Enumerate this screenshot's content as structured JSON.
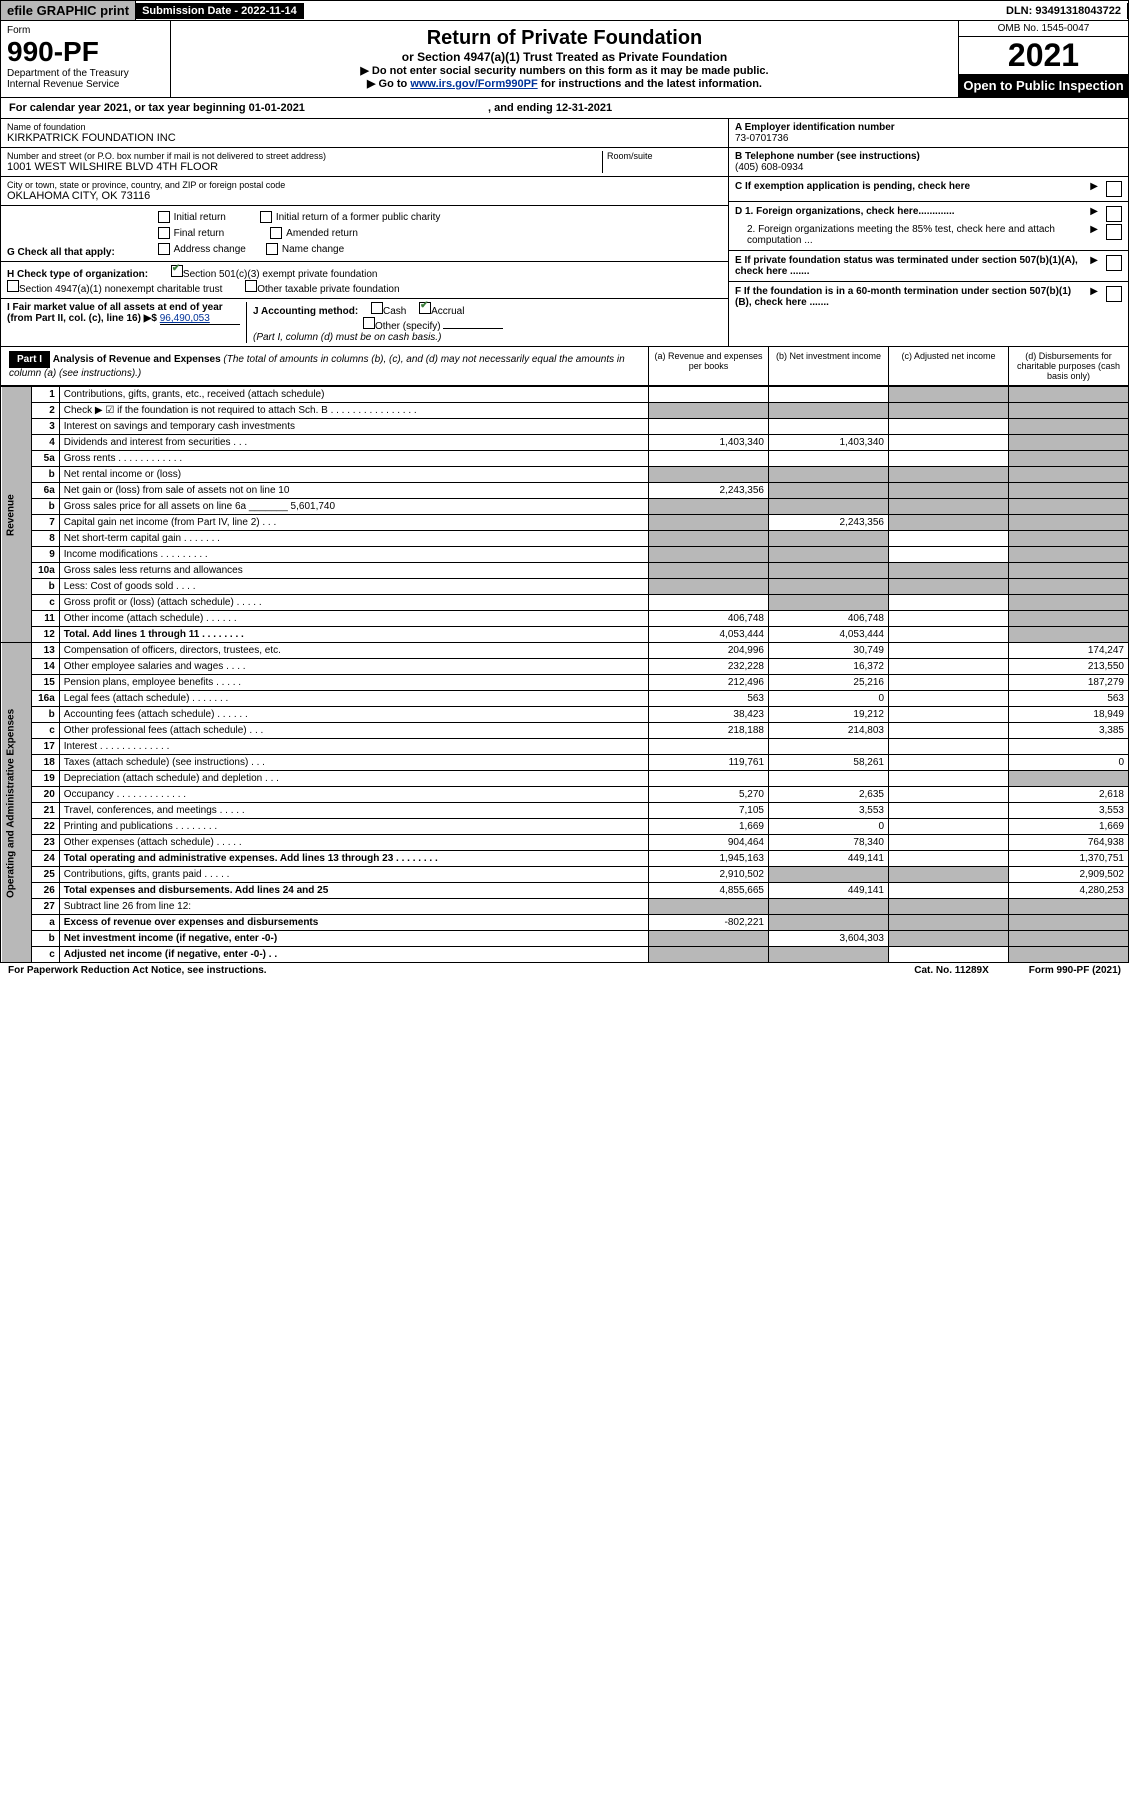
{
  "top": {
    "efile": "efile GRAPHIC print",
    "subdate_label": "Submission Date - 2022-11-14",
    "dln": "DLN: 93491318043722"
  },
  "header": {
    "form_word": "Form",
    "form_no": "990-PF",
    "dept": "Department of the Treasury",
    "irs": "Internal Revenue Service",
    "title": "Return of Private Foundation",
    "sub": "or Section 4947(a)(1) Trust Treated as Private Foundation",
    "note1": "▶ Do not enter social security numbers on this form as it may be made public.",
    "note2_pre": "▶ Go to ",
    "note2_link": "www.irs.gov/Form990PF",
    "note2_post": " for instructions and the latest information.",
    "omb": "OMB No. 1545-0047",
    "year": "2021",
    "open": "Open to Public Inspection"
  },
  "calyear": {
    "pre": "For calendar year 2021, or tax year beginning ",
    "begin": "01-01-2021",
    "mid": " , and ending ",
    "end": "12-31-2021"
  },
  "org": {
    "name_label": "Name of foundation",
    "name": "KIRKPATRICK FOUNDATION INC",
    "addr_label": "Number and street (or P.O. box number if mail is not delivered to street address)",
    "addr": "1001 WEST WILSHIRE BLVD 4TH FLOOR",
    "room_label": "Room/suite",
    "city_label": "City or town, state or province, country, and ZIP or foreign postal code",
    "city": "OKLAHOMA CITY, OK  73116"
  },
  "right": {
    "a_label": "A Employer identification number",
    "a_val": "73-0701736",
    "b_label": "B Telephone number (see instructions)",
    "b_val": "(405) 608-0934",
    "c_label": "C If exemption application is pending, check here",
    "d1": "D 1. Foreign organizations, check here.............",
    "d2": "2. Foreign organizations meeting the 85% test, check here and attach computation ...",
    "e": "E  If private foundation status was terminated under section 507(b)(1)(A), check here .......",
    "f": "F  If the foundation is in a 60-month termination under section 507(b)(1)(B), check here ......."
  },
  "g": {
    "label": "G Check all that apply:",
    "initial": "Initial return",
    "initial_former": "Initial return of a former public charity",
    "final": "Final return",
    "amended": "Amended return",
    "addr_change": "Address change",
    "name_change": "Name change"
  },
  "h": {
    "label": "H Check type of organization:",
    "501c3": "Section 501(c)(3) exempt private foundation",
    "4947": "Section 4947(a)(1) nonexempt charitable trust",
    "other_tax": "Other taxable private foundation"
  },
  "i": {
    "label": "I Fair market value of all assets at end of year (from Part II, col. (c), line 16) ▶$ ",
    "val": "96,490,053"
  },
  "j": {
    "label": "J Accounting method:",
    "cash": "Cash",
    "accrual": "Accrual",
    "other": "Other (specify)",
    "note": "(Part I, column (d) must be on cash basis.)"
  },
  "part1": {
    "label": "Part I",
    "title": "Analysis of Revenue and Expenses",
    "note": " (The total of amounts in columns (b), (c), and (d) may not necessarily equal the amounts in column (a) (see instructions).)",
    "col_a": "(a)   Revenue and expenses per books",
    "col_b": "(b)   Net investment income",
    "col_c": "(c)   Adjusted net income",
    "col_d": "(d)   Disbursements for charitable purposes (cash basis only)"
  },
  "sections": {
    "revenue": "Revenue",
    "expenses": "Operating and Administrative Expenses"
  },
  "rows": [
    {
      "n": "1",
      "d": "Contributions, gifts, grants, etc., received (attach schedule)",
      "a": "",
      "b": "",
      "c": "",
      "dd": "",
      "shade_c": true,
      "shade_d": true
    },
    {
      "n": "2",
      "d": "Check ▶ ☑ if the foundation is not required to attach Sch. B   . . . . . . . . . . . . . . . .",
      "a": "",
      "b": "",
      "c": "",
      "dd": "",
      "shade_a": true,
      "shade_b": true,
      "shade_c": true,
      "shade_d": true
    },
    {
      "n": "3",
      "d": "Interest on savings and temporary cash investments",
      "a": "",
      "b": "",
      "c": "",
      "dd": "",
      "shade_d": true
    },
    {
      "n": "4",
      "d": "Dividends and interest from securities   . . .",
      "a": "1,403,340",
      "b": "1,403,340",
      "c": "",
      "dd": "",
      "shade_d": true
    },
    {
      "n": "5a",
      "d": "Gross rents   . . . . . . . . . . . .",
      "a": "",
      "b": "",
      "c": "",
      "dd": "",
      "shade_d": true
    },
    {
      "n": "b",
      "d": "Net rental income or (loss)  ",
      "a": "",
      "b": "",
      "c": "",
      "dd": "",
      "shade_a": true,
      "shade_b": true,
      "shade_c": true,
      "shade_d": true
    },
    {
      "n": "6a",
      "d": "Net gain or (loss) from sale of assets not on line 10",
      "a": "2,243,356",
      "b": "",
      "c": "",
      "dd": "",
      "shade_b": true,
      "shade_c": true,
      "shade_d": true
    },
    {
      "n": "b",
      "d": "Gross sales price for all assets on line 6a _______ 5,601,740",
      "a": "",
      "b": "",
      "c": "",
      "dd": "",
      "shade_a": true,
      "shade_b": true,
      "shade_c": true,
      "shade_d": true
    },
    {
      "n": "7",
      "d": "Capital gain net income (from Part IV, line 2)   . . .",
      "a": "",
      "b": "2,243,356",
      "c": "",
      "dd": "",
      "shade_a": true,
      "shade_c": true,
      "shade_d": true
    },
    {
      "n": "8",
      "d": "Net short-term capital gain   . . . . . . .",
      "a": "",
      "b": "",
      "c": "",
      "dd": "",
      "shade_a": true,
      "shade_b": true,
      "shade_d": true
    },
    {
      "n": "9",
      "d": "Income modifications   . . . . . . . . .",
      "a": "",
      "b": "",
      "c": "",
      "dd": "",
      "shade_a": true,
      "shade_b": true,
      "shade_d": true
    },
    {
      "n": "10a",
      "d": "Gross sales less returns and allowances  ",
      "a": "",
      "b": "",
      "c": "",
      "dd": "",
      "shade_a": true,
      "shade_b": true,
      "shade_c": true,
      "shade_d": true
    },
    {
      "n": "b",
      "d": "Less: Cost of goods sold   . . . .  ",
      "a": "",
      "b": "",
      "c": "",
      "dd": "",
      "shade_a": true,
      "shade_b": true,
      "shade_c": true,
      "shade_d": true
    },
    {
      "n": "c",
      "d": "Gross profit or (loss) (attach schedule)   . . . . .",
      "a": "",
      "b": "",
      "c": "",
      "dd": "",
      "shade_b": true,
      "shade_d": true
    },
    {
      "n": "11",
      "d": "Other income (attach schedule)   . . . . . .",
      "a": "406,748",
      "b": "406,748",
      "c": "",
      "dd": "",
      "shade_d": true
    },
    {
      "n": "12",
      "d": "Total. Add lines 1 through 11   . . . . . . . .",
      "a": "4,053,444",
      "b": "4,053,444",
      "c": "",
      "dd": "",
      "bold": true,
      "shade_d": true
    },
    {
      "n": "13",
      "d": "Compensation of officers, directors, trustees, etc.",
      "a": "204,996",
      "b": "30,749",
      "c": "",
      "dd": "174,247"
    },
    {
      "n": "14",
      "d": "Other employee salaries and wages   . . . .",
      "a": "232,228",
      "b": "16,372",
      "c": "",
      "dd": "213,550"
    },
    {
      "n": "15",
      "d": "Pension plans, employee benefits   . . . . .",
      "a": "212,496",
      "b": "25,216",
      "c": "",
      "dd": "187,279"
    },
    {
      "n": "16a",
      "d": "Legal fees (attach schedule)   . . . . . . .",
      "a": "563",
      "b": "0",
      "c": "",
      "dd": "563"
    },
    {
      "n": "b",
      "d": "Accounting fees (attach schedule)   . . . . . .",
      "a": "38,423",
      "b": "19,212",
      "c": "",
      "dd": "18,949"
    },
    {
      "n": "c",
      "d": "Other professional fees (attach schedule)   . . .",
      "a": "218,188",
      "b": "214,803",
      "c": "",
      "dd": "3,385"
    },
    {
      "n": "17",
      "d": "Interest   . . . . . . . . . . . . .",
      "a": "",
      "b": "",
      "c": "",
      "dd": ""
    },
    {
      "n": "18",
      "d": "Taxes (attach schedule) (see instructions)   . . .",
      "a": "119,761",
      "b": "58,261",
      "c": "",
      "dd": "0"
    },
    {
      "n": "19",
      "d": "Depreciation (attach schedule) and depletion   . . .",
      "a": "",
      "b": "",
      "c": "",
      "dd": "",
      "shade_d": true
    },
    {
      "n": "20",
      "d": "Occupancy   . . . . . . . . . . . . .",
      "a": "5,270",
      "b": "2,635",
      "c": "",
      "dd": "2,618"
    },
    {
      "n": "21",
      "d": "Travel, conferences, and meetings   . . . . .",
      "a": "7,105",
      "b": "3,553",
      "c": "",
      "dd": "3,553"
    },
    {
      "n": "22",
      "d": "Printing and publications   . . . . . . . .",
      "a": "1,669",
      "b": "0",
      "c": "",
      "dd": "1,669"
    },
    {
      "n": "23",
      "d": "Other expenses (attach schedule)   . . . . .",
      "a": "904,464",
      "b": "78,340",
      "c": "",
      "dd": "764,938"
    },
    {
      "n": "24",
      "d": "Total operating and administrative expenses. Add lines 13 through 23   . . . . . . . .",
      "a": "1,945,163",
      "b": "449,141",
      "c": "",
      "dd": "1,370,751",
      "bold": true
    },
    {
      "n": "25",
      "d": "Contributions, gifts, grants paid   . . . . .",
      "a": "2,910,502",
      "b": "",
      "c": "",
      "dd": "2,909,502",
      "shade_b": true,
      "shade_c": true
    },
    {
      "n": "26",
      "d": "Total expenses and disbursements. Add lines 24 and 25",
      "a": "4,855,665",
      "b": "449,141",
      "c": "",
      "dd": "4,280,253",
      "bold": true
    },
    {
      "n": "27",
      "d": "Subtract line 26 from line 12:",
      "a": "",
      "b": "",
      "c": "",
      "dd": "",
      "shade_a": true,
      "shade_b": true,
      "shade_c": true,
      "shade_d": true
    },
    {
      "n": "a",
      "d": "Excess of revenue over expenses and disbursements",
      "a": "-802,221",
      "b": "",
      "c": "",
      "dd": "",
      "bold": true,
      "shade_b": true,
      "shade_c": true,
      "shade_d": true
    },
    {
      "n": "b",
      "d": "Net investment income (if negative, enter -0-)",
      "a": "",
      "b": "3,604,303",
      "c": "",
      "dd": "",
      "bold": true,
      "shade_a": true,
      "shade_c": true,
      "shade_d": true
    },
    {
      "n": "c",
      "d": "Adjusted net income (if negative, enter -0-)   . .",
      "a": "",
      "b": "",
      "c": "",
      "dd": "",
      "bold": true,
      "shade_a": true,
      "shade_b": true,
      "shade_d": true
    }
  ],
  "footer": {
    "left": "For Paperwork Reduction Act Notice, see instructions.",
    "mid": "Cat. No. 11289X",
    "right": "Form 990-PF (2021)"
  }
}
